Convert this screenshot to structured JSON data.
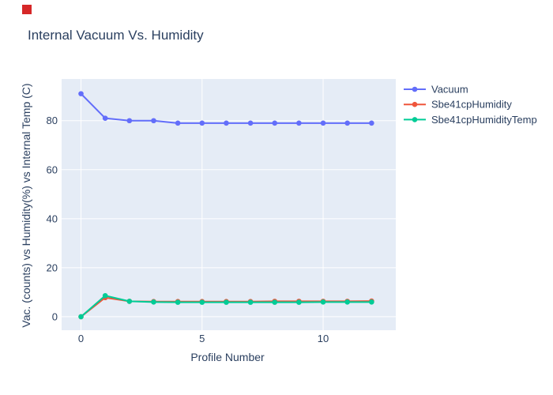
{
  "marker_square": {
    "color": "#d62728"
  },
  "chart": {
    "text_color": "#2a3f5f",
    "plot_bg_color": "#E5ECF6",
    "grid_color": "#ffffff",
    "page_bg_color": "#ffffff"
  },
  "chart_data": {
    "type": "line",
    "title": "Internal Vacuum Vs. Humidity",
    "xlabel": "Profile Number",
    "ylabel": "Vac. (counts) vs Humidity(%) vs Internal Temp (C)",
    "x": [
      0,
      1,
      2,
      3,
      4,
      5,
      6,
      7,
      8,
      9,
      10,
      11,
      12
    ],
    "series": [
      {
        "name": "Vacuum",
        "color": "#636EFA",
        "values": [
          91,
          81,
          80,
          80,
          79,
          79,
          79,
          79,
          79,
          79,
          79,
          79,
          79
        ]
      },
      {
        "name": "Sbe41cpHumidity",
        "color": "#EF553B",
        "values": [
          0,
          7.8,
          6.3,
          6.2,
          6.2,
          6.2,
          6.2,
          6.2,
          6.3,
          6.3,
          6.3,
          6.3,
          6.4
        ]
      },
      {
        "name": "Sbe41cpHumidityTemp",
        "color": "#00CC96",
        "values": [
          0,
          8.6,
          6.3,
          6.0,
          5.9,
          5.9,
          5.9,
          5.9,
          5.9,
          5.9,
          6.0,
          6.0,
          6.0
        ]
      }
    ],
    "x_ticks": [
      0,
      5,
      10
    ],
    "y_ticks": [
      0,
      20,
      40,
      60,
      80
    ],
    "xlim": [
      -0.8,
      13.0
    ],
    "ylim": [
      -5.5,
      97.0
    ],
    "grid": true,
    "markers": true,
    "legend_position": "right-top"
  }
}
